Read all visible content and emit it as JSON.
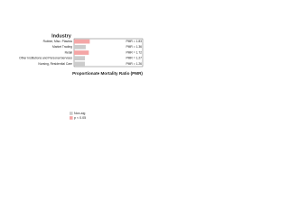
{
  "chart_data": {
    "type": "bar",
    "orientation": "horizontal",
    "title": "Industry",
    "x_label": "Proportionate Mortality Ratio (PMR)",
    "categories": [
      "Rubber, Misc. Plastics",
      "Market Trading",
      "Retail",
      "Other Institutions and Personal Services",
      "Nursing, Residential Care"
    ],
    "values": [
      1.83,
      1.36,
      1.72,
      1.27,
      1.26
    ],
    "value_labels": [
      "PMR = 1.83",
      "PMR = 1.36",
      "PMR = 1.72",
      "PMR = 1.27",
      "PMR = 1.26"
    ],
    "colors": [
      "#f4a6a6",
      "#cccccc",
      "#f4a6a6",
      "#cccccc",
      "#cccccc"
    ],
    "xlim": [
      0,
      8
    ],
    "legend": [
      {
        "label": "Non-sig",
        "color": "#cccccc"
      },
      {
        "label": "p < 0.05",
        "color": "#f4a6a6"
      }
    ]
  }
}
